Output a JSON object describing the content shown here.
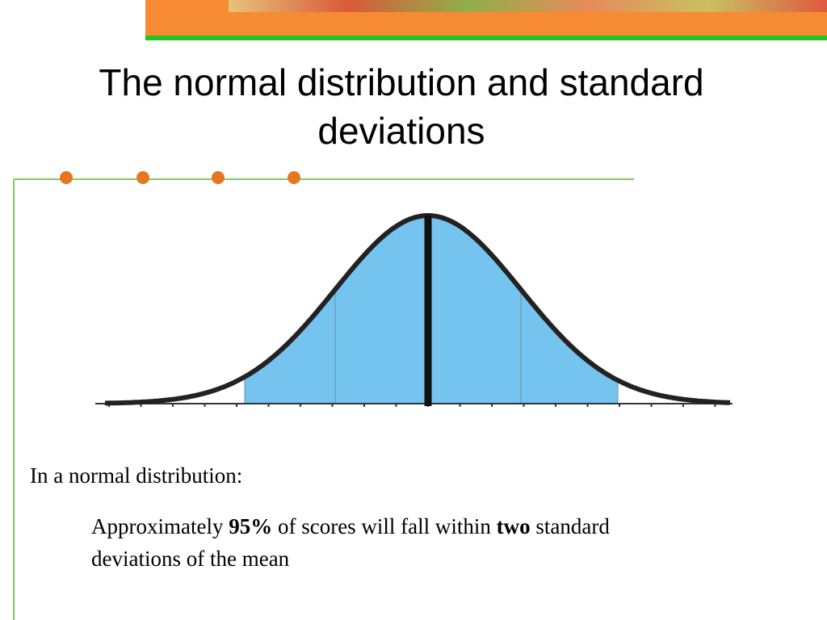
{
  "title": "The normal distribution and standard deviations",
  "bullet": "In a normal distribution:",
  "sub_bullet": [
    "Approximately",
    "95%",
    "of scores will fall within",
    "two",
    "standard deviations of the mean"
  ]
}
